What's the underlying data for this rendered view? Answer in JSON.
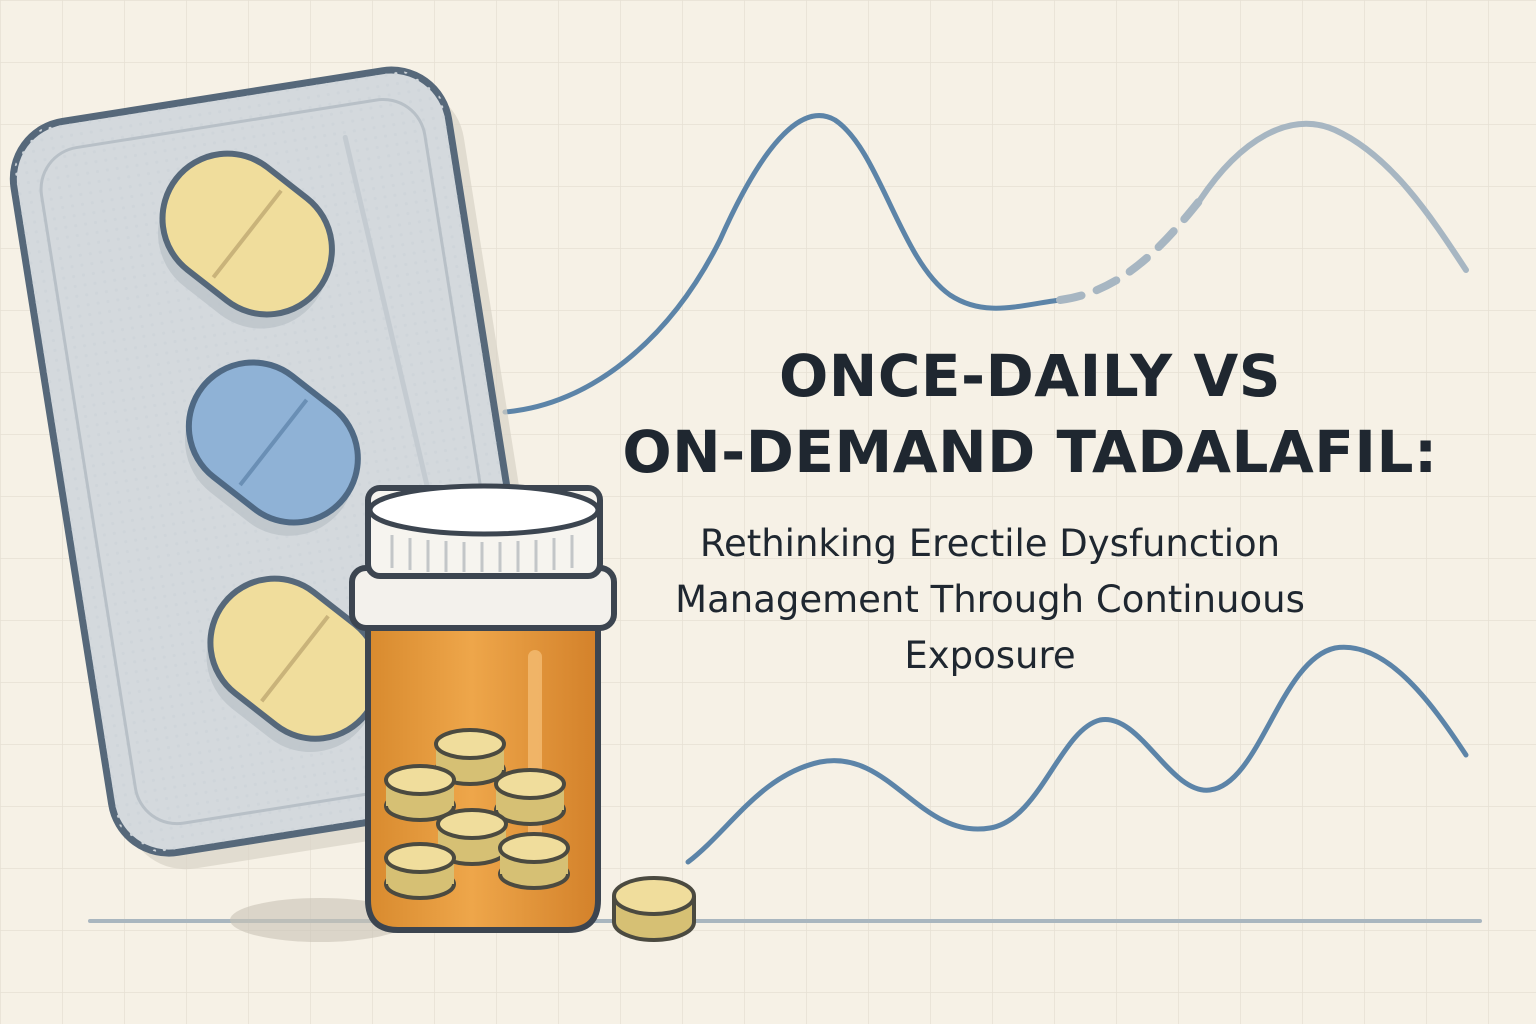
{
  "title": {
    "line1": "ONCE-DAILY VS",
    "line2": "ON-DEMAND TADALAFIL:"
  },
  "subtitle": {
    "line1": "Rethinking Erectile Dysfunction",
    "line2": "Management Through Continuous",
    "line3": "Exposure"
  },
  "colors": {
    "background": "#f6f1e6",
    "grid": "#e2ddd2",
    "curve": "#5c84a8",
    "curve_faded": "#a7b6c2",
    "pill_yellow": "#f0dd9c",
    "pill_blue": "#8fb2d6",
    "bottle_orange": "#e39a3a",
    "text": "#1f2730"
  }
}
